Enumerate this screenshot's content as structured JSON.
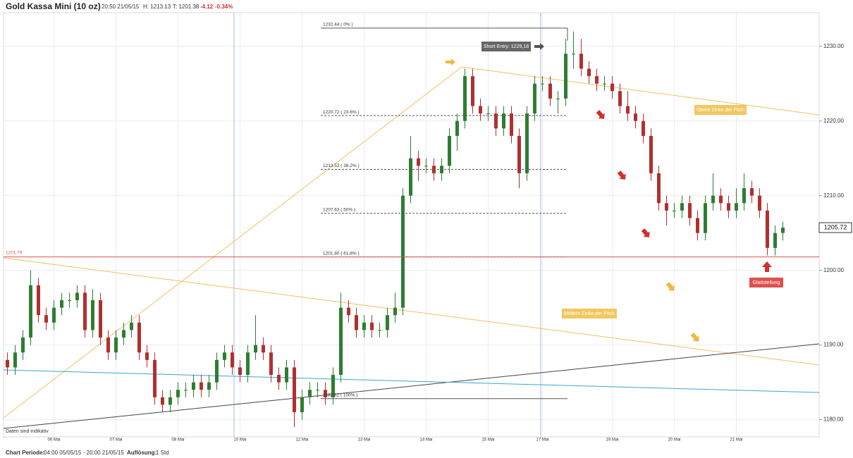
{
  "chart_data": {
    "type": "candlestick",
    "title": "Gold Kassa Mini (10 oz)",
    "header": {
      "time": "20:50 21/05/15",
      "high": "H: 1213.13",
      "low": "T: 1201.38",
      "change": "-4.12",
      "change_pct": "-0.34%"
    },
    "footer": {
      "period_label": "Chart Periode:",
      "period": "04:00 05/05/15 - 20:00 21/05/15",
      "resolution_label": "Auflösung:",
      "resolution": "1 Std"
    },
    "note": "Daten sind indikativ",
    "annotations": [
      "Short Entry: 1229,18",
      "Obere Zinke der Pitch",
      "Mittlere Zinke der Pitch",
      "Glattstellung"
    ],
    "up_color": "#2e7d32",
    "down_color": "#b03030",
    "grid": true,
    "categories": [
      null,
      null,
      null,
      null,
      null,
      null,
      "06 Mai",
      null,
      null,
      null,
      null,
      null,
      null,
      null,
      "07 Mai",
      null,
      null,
      null,
      null,
      null,
      null,
      null,
      "08 Mai",
      null,
      null,
      null,
      null,
      null,
      null,
      null,
      "10 Mai",
      null,
      null,
      null,
      null,
      null,
      null,
      null,
      "12 Mai",
      null,
      null,
      null,
      null,
      null,
      null,
      null,
      "13 Mai",
      null,
      null,
      null,
      null,
      null,
      null,
      null,
      "14 Mai",
      null,
      null,
      null,
      null,
      null,
      null,
      null,
      "15 Mai",
      null,
      null,
      null,
      null,
      null,
      null,
      "17 Mai",
      null,
      null,
      null,
      null,
      null,
      null,
      null,
      null,
      "19 Mai",
      null,
      null,
      null,
      null,
      null,
      null,
      null,
      "20 Mai",
      null,
      null,
      null,
      null,
      null,
      null,
      null,
      "21 Mai",
      null,
      null,
      null,
      null,
      null,
      null
    ],
    "open": [
      1188,
      1187,
      1189,
      1191,
      1198,
      1194,
      1193,
      1195,
      1196,
      1196,
      1197,
      1192,
      1196,
      1191,
      1189,
      1191,
      1192,
      1193,
      1189,
      1188,
      1183,
      1182,
      1183,
      1184,
      1184,
      1185,
      1184,
      1185,
      1188,
      1189,
      1187,
      1186,
      1189,
      1190,
      1189,
      1186,
      1185,
      1187,
      1181,
      1183,
      1184,
      1184,
      1183,
      1186,
      1195,
      1194,
      1192,
      1193,
      1192,
      1192,
      1194,
      1195,
      1210,
      1215,
      1214,
      1214,
      1213,
      1214,
      1218,
      1220,
      1226,
      1222,
      1221,
      1221,
      1219,
      1221,
      1218,
      1213,
      1221,
      1225,
      1225,
      1223,
      1223,
      1229,
      1229,
      1227,
      1226,
      1225,
      1225,
      1224,
      1222,
      1221,
      1220,
      1218,
      1213,
      1209,
      1208,
      1208,
      1209,
      1207,
      1205,
      1209,
      1210,
      1209,
      1208,
      1209,
      1211,
      1210,
      1208,
      1203,
      1205
    ],
    "high": [
      1189,
      1190,
      1192,
      1200,
      1199,
      1195,
      1196,
      1197,
      1197,
      1198,
      1198,
      1197.5,
      1197,
      1192,
      1192,
      1193,
      1194,
      1194,
      1190,
      1189,
      1184,
      1184,
      1185,
      1185,
      1186,
      1186,
      1186,
      1189,
      1190,
      1190,
      1188,
      1190,
      1194,
      1191,
      1190,
      1187,
      1188,
      1188,
      1184,
      1185,
      1185,
      1185,
      1187,
      1197,
      1196,
      1195,
      1194,
      1194,
      1193,
      1195,
      1197,
      1211,
      1218,
      1216,
      1215,
      1215,
      1215,
      1219,
      1221,
      1227,
      1227,
      1223,
      1222,
      1222,
      1222,
      1222,
      1219,
      1222,
      1226,
      1226,
      1226,
      1224,
      1231,
      1232,
      1231,
      1228,
      1227,
      1226,
      1226,
      1225,
      1224,
      1222,
      1221,
      1219,
      1214,
      1210,
      1209,
      1210,
      1210,
      1208,
      1210,
      1213,
      1211,
      1210,
      1211,
      1213,
      1212,
      1211,
      1209,
      1206,
      1206.5
    ],
    "low": [
      1186,
      1186,
      1188,
      1190,
      1193,
      1192,
      1192,
      1194,
      1195,
      1195,
      1191,
      1191,
      1190,
      1188,
      1188,
      1190,
      1191,
      1188,
      1187,
      1182,
      1181,
      1181,
      1182,
      1183,
      1183,
      1183,
      1183,
      1184,
      1187,
      1186,
      1185,
      1185,
      1188,
      1188,
      1185,
      1184,
      1184,
      1179,
      1180,
      1182,
      1183,
      1182,
      1182,
      1185,
      1193,
      1191,
      1191,
      1191,
      1191,
      1191,
      1193,
      1194,
      1209,
      1212,
      1213,
      1212,
      1212,
      1213,
      1216,
      1219,
      1221,
      1220,
      1220,
      1218,
      1218,
      1217,
      1211,
      1212,
      1220,
      1224,
      1222,
      1221,
      1222,
      1227,
      1226,
      1225,
      1224,
      1224,
      1223,
      1221,
      1220,
      1219,
      1217,
      1212,
      1208,
      1206,
      1207,
      1207,
      1206,
      1204,
      1204,
      1208,
      1208,
      1207,
      1207,
      1208,
      1209,
      1207,
      1202,
      1202,
      1204
    ],
    "close": [
      1187,
      1189,
      1191,
      1198,
      1194,
      1193,
      1195,
      1196,
      1196,
      1197,
      1192,
      1196,
      1191,
      1189,
      1191,
      1192,
      1193,
      1189,
      1188,
      1183,
      1182,
      1183,
      1184,
      1184,
      1185,
      1184,
      1185,
      1188,
      1189,
      1187,
      1186,
      1189,
      1190,
      1189,
      1186,
      1185,
      1187,
      1181,
      1183,
      1184,
      1184,
      1183,
      1186,
      1195,
      1194,
      1192,
      1193,
      1192,
      1192,
      1194,
      1195,
      1210,
      1215,
      1214,
      1214,
      1213,
      1214,
      1218,
      1220,
      1226,
      1222,
      1221,
      1221,
      1219,
      1221,
      1218,
      1213,
      1221,
      1225,
      1225,
      1223,
      1223,
      1229,
      1229,
      1227,
      1226,
      1225,
      1225,
      1224,
      1222,
      1221,
      1220,
      1218,
      1213,
      1209,
      1208,
      1208,
      1209,
      1207,
      1205,
      1209,
      1210,
      1209,
      1208,
      1209,
      1211,
      1210,
      1208,
      1203,
      1205,
      1205.72
    ],
    "ylim": [
      1177.7,
      1234.5
    ],
    "yticks": [
      {
        "value": 1180,
        "label": "1180.00"
      },
      {
        "value": 1190,
        "label": "1190.00"
      },
      {
        "value": 1200,
        "label": "1200.00"
      },
      {
        "value": 1210,
        "label": "1210.00"
      },
      {
        "value": 1220,
        "label": "1220.00"
      },
      {
        "value": 1230,
        "label": "1230.00"
      }
    ],
    "fib_levels": [
      {
        "value": 1232.44,
        "label": "1232.44 ( 0% )"
      },
      {
        "value": 1220.72,
        "label": "1220.72 ( 23.6% )"
      },
      {
        "value": 1213.52,
        "label": "1213.52 ( 38.2% )"
      },
      {
        "value": 1207.63,
        "label": "1207.63 ( 50% )"
      },
      {
        "value": 1201.8,
        "label": "1201.80 ( 61.8% )"
      },
      {
        "value": 1182.82,
        "label": "1182.82 ( 100% )"
      }
    ],
    "reference_line": {
      "value": 1201.79,
      "label": "1201.79",
      "color": "#e05050"
    },
    "last_price": {
      "value": 1205.72,
      "label": "1205.72"
    }
  }
}
